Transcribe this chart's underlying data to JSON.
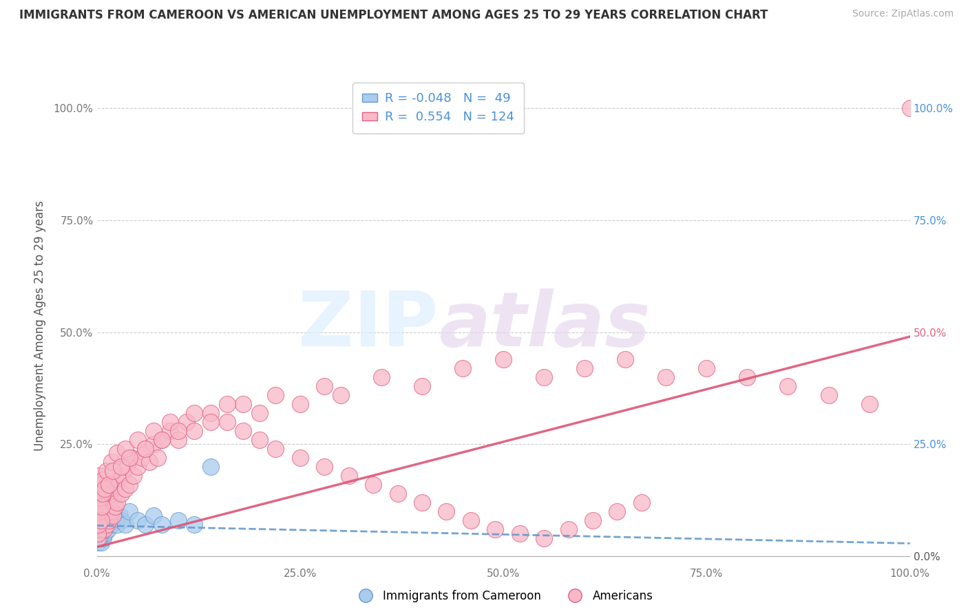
{
  "title": "IMMIGRANTS FROM CAMEROON VS AMERICAN UNEMPLOYMENT AMONG AGES 25 TO 29 YEARS CORRELATION CHART",
  "source": "Source: ZipAtlas.com",
  "ylabel": "Unemployment Among Ages 25 to 29 years",
  "ytick_labels": [
    "",
    "25.0%",
    "50.0%",
    "75.0%",
    "100.0%"
  ],
  "ytick_values": [
    0,
    0.25,
    0.5,
    0.75,
    1.0
  ],
  "right_ytick_labels": [
    "0.0%",
    "25.0%",
    "50.0%",
    "75.0%",
    "100.0%"
  ],
  "right_ytick_colors": [
    "#555555",
    "#4a90d9",
    "#e06080",
    "#4a90d9",
    "#4a90d9"
  ],
  "blue_R": "-0.048",
  "blue_N": "49",
  "pink_R": "0.554",
  "pink_N": "124",
  "blue_color": "#aaccee",
  "pink_color": "#f8b8c8",
  "blue_edge_color": "#6699cc",
  "pink_edge_color": "#e06080",
  "blue_line_color": "#6699cc",
  "pink_line_color": "#dd5577",
  "legend_label_blue": "Immigrants from Cameroon",
  "legend_label_pink": "Americans",
  "xlim": [
    0.0,
    1.0
  ],
  "ylim": [
    -0.02,
    1.05
  ],
  "background_color": "#ffffff",
  "grid_color": "#cccccc",
  "blue_scatter_x": [
    0.001,
    0.001,
    0.001,
    0.002,
    0.002,
    0.002,
    0.002,
    0.003,
    0.003,
    0.003,
    0.003,
    0.004,
    0.004,
    0.005,
    0.005,
    0.005,
    0.006,
    0.006,
    0.007,
    0.007,
    0.008,
    0.008,
    0.009,
    0.01,
    0.01,
    0.011,
    0.012,
    0.013,
    0.014,
    0.015,
    0.016,
    0.018,
    0.02,
    0.022,
    0.025,
    0.028,
    0.03,
    0.035,
    0.04,
    0.05,
    0.06,
    0.07,
    0.08,
    0.1,
    0.12,
    0.14,
    0.003,
    0.002,
    0.001
  ],
  "blue_scatter_y": [
    0.05,
    0.03,
    0.1,
    0.04,
    0.08,
    0.12,
    0.07,
    0.06,
    0.09,
    0.05,
    0.11,
    0.04,
    0.08,
    0.06,
    0.1,
    0.03,
    0.07,
    0.12,
    0.05,
    0.09,
    0.04,
    0.08,
    0.06,
    0.1,
    0.05,
    0.08,
    0.07,
    0.11,
    0.06,
    0.09,
    0.08,
    0.07,
    0.1,
    0.08,
    0.07,
    0.09,
    0.08,
    0.07,
    0.1,
    0.08,
    0.07,
    0.09,
    0.07,
    0.08,
    0.07,
    0.2,
    0.04,
    0.05,
    0.06
  ],
  "pink_scatter_x": [
    0.001,
    0.001,
    0.001,
    0.002,
    0.002,
    0.002,
    0.003,
    0.003,
    0.003,
    0.004,
    0.004,
    0.005,
    0.005,
    0.005,
    0.006,
    0.006,
    0.007,
    0.007,
    0.008,
    0.008,
    0.009,
    0.009,
    0.01,
    0.01,
    0.011,
    0.012,
    0.012,
    0.013,
    0.014,
    0.015,
    0.016,
    0.017,
    0.018,
    0.019,
    0.02,
    0.021,
    0.022,
    0.023,
    0.025,
    0.027,
    0.03,
    0.032,
    0.035,
    0.038,
    0.04,
    0.043,
    0.045,
    0.05,
    0.055,
    0.06,
    0.065,
    0.07,
    0.075,
    0.08,
    0.09,
    0.1,
    0.11,
    0.12,
    0.14,
    0.16,
    0.18,
    0.2,
    0.22,
    0.25,
    0.28,
    0.3,
    0.35,
    0.4,
    0.45,
    0.5,
    0.55,
    0.6,
    0.65,
    0.7,
    0.75,
    0.8,
    0.85,
    0.9,
    0.95,
    1.0,
    0.001,
    0.002,
    0.003,
    0.004,
    0.005,
    0.006,
    0.007,
    0.008,
    0.01,
    0.012,
    0.015,
    0.018,
    0.02,
    0.025,
    0.03,
    0.035,
    0.04,
    0.05,
    0.06,
    0.07,
    0.08,
    0.09,
    0.1,
    0.12,
    0.14,
    0.16,
    0.18,
    0.2,
    0.22,
    0.25,
    0.28,
    0.31,
    0.34,
    0.37,
    0.4,
    0.43,
    0.46,
    0.49,
    0.52,
    0.55,
    0.58,
    0.61,
    0.64,
    0.67
  ],
  "pink_scatter_y": [
    0.04,
    0.08,
    0.12,
    0.06,
    0.1,
    0.15,
    0.07,
    0.12,
    0.18,
    0.09,
    0.14,
    0.06,
    0.11,
    0.16,
    0.08,
    0.13,
    0.07,
    0.12,
    0.09,
    0.14,
    0.06,
    0.11,
    0.08,
    0.13,
    0.1,
    0.07,
    0.14,
    0.09,
    0.12,
    0.08,
    0.11,
    0.15,
    0.1,
    0.13,
    0.09,
    0.14,
    0.11,
    0.16,
    0.12,
    0.17,
    0.14,
    0.18,
    0.15,
    0.2,
    0.16,
    0.22,
    0.18,
    0.2,
    0.22,
    0.24,
    0.21,
    0.25,
    0.22,
    0.26,
    0.28,
    0.26,
    0.3,
    0.28,
    0.32,
    0.3,
    0.34,
    0.32,
    0.36,
    0.34,
    0.38,
    0.36,
    0.4,
    0.38,
    0.42,
    0.44,
    0.4,
    0.42,
    0.44,
    0.4,
    0.42,
    0.4,
    0.38,
    0.36,
    0.34,
    1.0,
    0.05,
    0.07,
    0.1,
    0.13,
    0.08,
    0.11,
    0.14,
    0.17,
    0.15,
    0.19,
    0.16,
    0.21,
    0.19,
    0.23,
    0.2,
    0.24,
    0.22,
    0.26,
    0.24,
    0.28,
    0.26,
    0.3,
    0.28,
    0.32,
    0.3,
    0.34,
    0.28,
    0.26,
    0.24,
    0.22,
    0.2,
    0.18,
    0.16,
    0.14,
    0.12,
    0.1,
    0.08,
    0.06,
    0.05,
    0.04,
    0.06,
    0.08,
    0.1,
    0.12
  ],
  "blue_trend_slope": -0.04,
  "blue_trend_intercept": 0.068,
  "pink_trend_slope": 0.47,
  "pink_trend_intercept": 0.02
}
